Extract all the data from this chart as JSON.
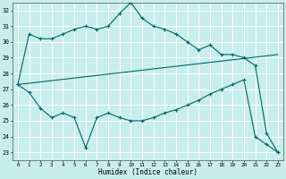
{
  "xlabel": "Humidex (Indice chaleur)",
  "bg_color": "#c8eded",
  "grid_color": "#b0d8d8",
  "line_color": "#006666",
  "xlim": [
    -0.5,
    23.5
  ],
  "ylim": [
    22.5,
    32.5
  ],
  "yticks": [
    23,
    24,
    25,
    26,
    27,
    28,
    29,
    30,
    31,
    32
  ],
  "xticks": [
    0,
    1,
    2,
    3,
    4,
    5,
    6,
    7,
    8,
    9,
    10,
    11,
    12,
    13,
    14,
    15,
    16,
    17,
    18,
    19,
    20,
    21,
    22,
    23
  ],
  "line1_x": [
    0,
    1,
    2,
    3,
    4,
    5,
    6,
    7,
    8,
    9,
    10,
    11,
    12,
    13,
    14,
    15,
    16,
    17,
    18,
    19,
    20,
    21,
    22,
    23
  ],
  "line1_y": [
    27.3,
    30.5,
    30.2,
    30.2,
    30.5,
    30.8,
    31.0,
    30.8,
    31.0,
    31.8,
    32.5,
    31.5,
    31.0,
    30.8,
    30.5,
    30.0,
    29.5,
    29.8,
    29.2,
    29.2,
    29.0,
    28.5,
    24.2,
    23.0
  ],
  "line2_x": [
    0,
    23
  ],
  "line2_y": [
    27.3,
    29.2
  ],
  "line3_x": [
    0,
    1,
    2,
    3,
    4,
    5,
    6,
    7,
    8,
    9,
    10,
    11,
    12,
    13,
    14,
    15,
    16,
    17,
    18,
    19,
    20,
    21,
    22,
    23
  ],
  "line3_y": [
    27.3,
    26.8,
    25.8,
    25.2,
    25.5,
    25.2,
    23.3,
    25.2,
    25.5,
    25.2,
    25.0,
    25.0,
    25.2,
    25.5,
    25.7,
    26.0,
    26.3,
    26.7,
    27.0,
    27.3,
    27.6,
    24.0,
    23.5,
    23.0
  ]
}
